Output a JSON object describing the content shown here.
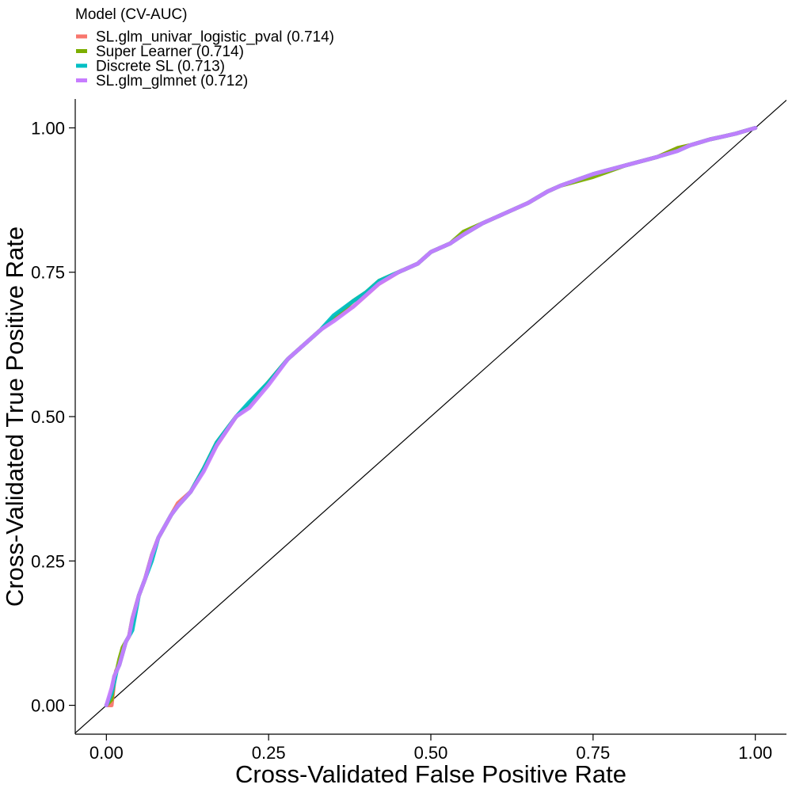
{
  "chart_data": {
    "type": "line",
    "title": "",
    "xlabel": "Cross-Validated False Positive Rate",
    "ylabel": "Cross-Validated True Positive Rate",
    "xlim": [
      -0.048,
      1.048
    ],
    "ylim": [
      -0.05,
      1.05
    ],
    "x_ticks": [
      0,
      0.25,
      0.5,
      0.75,
      1.0
    ],
    "x_tick_labels": [
      "0.00",
      "0.25",
      "0.50",
      "0.75",
      "1.00"
    ],
    "y_ticks": [
      0,
      0.25,
      0.5,
      0.75,
      1.0
    ],
    "y_tick_labels": [
      "0.00",
      "0.25",
      "0.50",
      "0.75",
      "1.00"
    ],
    "grid": false,
    "legend": {
      "title": "Model (CV-AUC)",
      "position": "top-left",
      "entries": [
        {
          "label": "SL.glm_univar_logistic_pval (0.714)",
          "color": "#F8766D"
        },
        {
          "label": "Super Learner (0.714)",
          "color": "#7CAE00"
        },
        {
          "label": "Discrete SL (0.713)",
          "color": "#00BFC4"
        },
        {
          "label": "SL.glm_glmnet (0.712)",
          "color": "#C77CFF"
        }
      ]
    },
    "reference_line": {
      "x": [
        -0.048,
        1.048
      ],
      "y": [
        -0.048,
        1.048
      ],
      "color": "#000000"
    },
    "series": [
      {
        "name": "SL.glm_univar_logistic_pval (0.714)",
        "color": "#F8766D",
        "x": [
          0,
          0.008,
          0.012,
          0.015,
          0.02,
          0.025,
          0.03,
          0.035,
          0.04,
          0.045,
          0.05,
          0.06,
          0.07,
          0.08,
          0.09,
          0.1,
          0.11,
          0.13,
          0.15,
          0.17,
          0.2,
          0.22,
          0.25,
          0.28,
          0.3,
          0.33,
          0.35,
          0.38,
          0.4,
          0.42,
          0.45,
          0.48,
          0.5,
          0.53,
          0.55,
          0.58,
          0.6,
          0.63,
          0.65,
          0.68,
          0.7,
          0.75,
          0.8,
          0.85,
          0.88,
          0.9,
          0.93,
          0.95,
          0.97,
          1.0
        ],
        "y": [
          0,
          0.0,
          0.04,
          0.06,
          0.07,
          0.09,
          0.11,
          0.12,
          0.14,
          0.17,
          0.19,
          0.22,
          0.26,
          0.29,
          0.31,
          0.33,
          0.35,
          0.37,
          0.41,
          0.45,
          0.5,
          0.52,
          0.56,
          0.6,
          0.62,
          0.65,
          0.67,
          0.69,
          0.71,
          0.73,
          0.75,
          0.765,
          0.785,
          0.8,
          0.815,
          0.835,
          0.845,
          0.86,
          0.87,
          0.89,
          0.9,
          0.92,
          0.935,
          0.95,
          0.965,
          0.97,
          0.98,
          0.985,
          0.99,
          1.0
        ]
      },
      {
        "name": "Super Learner (0.714)",
        "color": "#7CAE00",
        "x": [
          0,
          0.008,
          0.012,
          0.016,
          0.02,
          0.025,
          0.03,
          0.035,
          0.04,
          0.045,
          0.05,
          0.06,
          0.07,
          0.08,
          0.09,
          0.1,
          0.11,
          0.13,
          0.15,
          0.17,
          0.2,
          0.22,
          0.25,
          0.28,
          0.3,
          0.33,
          0.35,
          0.38,
          0.4,
          0.42,
          0.45,
          0.48,
          0.5,
          0.53,
          0.55,
          0.58,
          0.6,
          0.63,
          0.65,
          0.68,
          0.7,
          0.75,
          0.8,
          0.85,
          0.88,
          0.9,
          0.93,
          0.95,
          0.97,
          1.0
        ],
        "y": [
          0,
          0.01,
          0.05,
          0.06,
          0.08,
          0.1,
          0.11,
          0.12,
          0.15,
          0.17,
          0.19,
          0.22,
          0.26,
          0.29,
          0.31,
          0.33,
          0.345,
          0.37,
          0.41,
          0.455,
          0.5,
          0.52,
          0.56,
          0.6,
          0.62,
          0.65,
          0.67,
          0.7,
          0.715,
          0.735,
          0.75,
          0.765,
          0.785,
          0.8,
          0.82,
          0.835,
          0.845,
          0.86,
          0.87,
          0.89,
          0.9,
          0.915,
          0.935,
          0.95,
          0.965,
          0.97,
          0.98,
          0.985,
          0.99,
          1.0
        ]
      },
      {
        "name": "Discrete SL (0.713)",
        "color": "#00BFC4",
        "x": [
          0,
          0.008,
          0.012,
          0.016,
          0.02,
          0.025,
          0.03,
          0.035,
          0.04,
          0.045,
          0.05,
          0.06,
          0.07,
          0.08,
          0.09,
          0.1,
          0.11,
          0.13,
          0.15,
          0.17,
          0.2,
          0.22,
          0.25,
          0.28,
          0.3,
          0.33,
          0.35,
          0.38,
          0.4,
          0.42,
          0.45,
          0.48,
          0.5,
          0.53,
          0.55,
          0.58,
          0.6,
          0.63,
          0.65,
          0.68,
          0.7,
          0.75,
          0.8,
          0.85,
          0.88,
          0.9,
          0.93,
          0.95,
          0.97,
          1.0
        ],
        "y": [
          0,
          0.02,
          0.04,
          0.06,
          0.07,
          0.09,
          0.11,
          0.12,
          0.13,
          0.16,
          0.19,
          0.22,
          0.25,
          0.29,
          0.31,
          0.33,
          0.345,
          0.37,
          0.41,
          0.455,
          0.5,
          0.525,
          0.56,
          0.6,
          0.62,
          0.65,
          0.675,
          0.7,
          0.715,
          0.735,
          0.75,
          0.765,
          0.785,
          0.8,
          0.815,
          0.835,
          0.845,
          0.86,
          0.87,
          0.89,
          0.9,
          0.92,
          0.935,
          0.95,
          0.96,
          0.97,
          0.98,
          0.985,
          0.99,
          1.0
        ]
      },
      {
        "name": "SL.glm_glmnet (0.712)",
        "color": "#C77CFF",
        "x": [
          0,
          0.008,
          0.012,
          0.016,
          0.02,
          0.025,
          0.03,
          0.035,
          0.04,
          0.045,
          0.05,
          0.06,
          0.07,
          0.08,
          0.09,
          0.1,
          0.11,
          0.13,
          0.15,
          0.17,
          0.2,
          0.22,
          0.25,
          0.28,
          0.3,
          0.33,
          0.35,
          0.38,
          0.4,
          0.42,
          0.45,
          0.48,
          0.5,
          0.53,
          0.55,
          0.58,
          0.6,
          0.63,
          0.65,
          0.68,
          0.7,
          0.75,
          0.8,
          0.85,
          0.88,
          0.9,
          0.93,
          0.95,
          0.97,
          1.0
        ],
        "y": [
          0,
          0.03,
          0.05,
          0.06,
          0.07,
          0.09,
          0.11,
          0.12,
          0.15,
          0.17,
          0.19,
          0.22,
          0.26,
          0.29,
          0.31,
          0.33,
          0.345,
          0.37,
          0.405,
          0.45,
          0.5,
          0.515,
          0.555,
          0.6,
          0.62,
          0.65,
          0.665,
          0.69,
          0.71,
          0.73,
          0.75,
          0.765,
          0.785,
          0.8,
          0.815,
          0.835,
          0.845,
          0.86,
          0.87,
          0.89,
          0.9,
          0.92,
          0.935,
          0.95,
          0.96,
          0.97,
          0.98,
          0.985,
          0.99,
          1.0
        ]
      }
    ]
  }
}
